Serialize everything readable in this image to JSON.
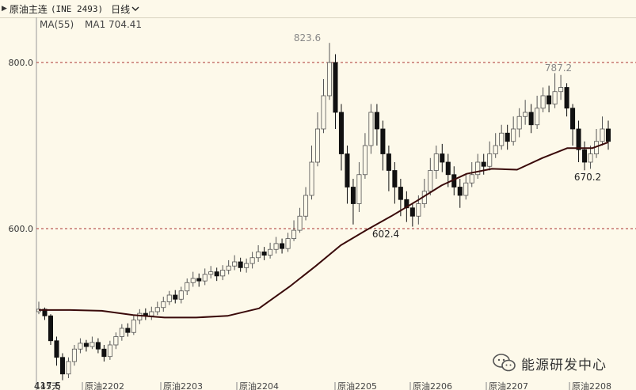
{
  "header": {
    "title": "原油主连",
    "code": "(INE 2493)",
    "period": "日线"
  },
  "indicator": {
    "ma_label": "MA(55)",
    "ma_value": "MA1 704.41"
  },
  "watermark": {
    "text": "能源研发中心",
    "icon": "wechat-icon"
  },
  "colors": {
    "background": "#fdf9ea",
    "candle_up_edge": "#555555",
    "candle_down_fill": "#111111",
    "ma_line": "#3a0a0a",
    "grid": "#a33"
  },
  "chart_data": {
    "type": "candlestick",
    "ylim": [
      450,
      850
    ],
    "y_ticks": [
      "800.0",
      "600.0"
    ],
    "grid_levels": [
      800,
      600
    ],
    "x_labels": [
      "145天",
      "原油2202",
      "原油2203",
      "原油2204",
      "原油2205",
      "原油2206",
      "原油2207",
      "原油2208"
    ],
    "annotations": [
      {
        "label": "823.6",
        "value": 823.6
      },
      {
        "label": "787.2",
        "value": 787.2
      },
      {
        "label": "602.4",
        "value": 602.4
      },
      {
        "label": "670.2",
        "value": 670.2
      },
      {
        "label": "417.5",
        "value": 417.5
      }
    ],
    "ma_series": [
      {
        "i": 0,
        "v": 502
      },
      {
        "i": 10,
        "v": 502
      },
      {
        "i": 20,
        "v": 501
      },
      {
        "i": 30,
        "v": 496
      },
      {
        "i": 40,
        "v": 493
      },
      {
        "i": 50,
        "v": 493
      },
      {
        "i": 60,
        "v": 495
      },
      {
        "i": 70,
        "v": 504
      },
      {
        "i": 80,
        "v": 531
      },
      {
        "i": 88,
        "v": 555
      },
      {
        "i": 96,
        "v": 580
      },
      {
        "i": 104,
        "v": 598
      },
      {
        "i": 112,
        "v": 615
      },
      {
        "i": 120,
        "v": 633
      },
      {
        "i": 128,
        "v": 652
      },
      {
        "i": 136,
        "v": 666
      },
      {
        "i": 144,
        "v": 672
      },
      {
        "i": 152,
        "v": 671
      },
      {
        "i": 160,
        "v": 685
      },
      {
        "i": 168,
        "v": 697
      },
      {
        "i": 176,
        "v": 697
      },
      {
        "i": 181,
        "v": 704
      }
    ],
    "candles": [
      [
        500,
        503,
        512,
        497
      ],
      [
        503,
        495,
        505,
        490
      ],
      [
        495,
        465,
        497,
        460
      ],
      [
        465,
        445,
        470,
        435
      ],
      [
        445,
        425,
        450,
        417.5
      ],
      [
        425,
        440,
        445,
        420
      ],
      [
        440,
        455,
        460,
        435
      ],
      [
        455,
        462,
        468,
        450
      ],
      [
        462,
        458,
        466,
        452
      ],
      [
        458,
        463,
        470,
        455
      ],
      [
        463,
        455,
        468,
        450
      ],
      [
        455,
        446,
        460,
        440
      ],
      [
        446,
        460,
        465,
        442
      ],
      [
        460,
        470,
        475,
        455
      ],
      [
        470,
        480,
        485,
        465
      ],
      [
        480,
        475,
        486,
        470
      ],
      [
        475,
        490,
        495,
        472
      ],
      [
        490,
        498,
        503,
        485
      ],
      [
        498,
        495,
        504,
        490
      ],
      [
        495,
        500,
        506,
        490
      ],
      [
        500,
        505,
        512,
        496
      ],
      [
        505,
        512,
        518,
        500
      ],
      [
        512,
        520,
        525,
        508
      ],
      [
        520,
        515,
        526,
        510
      ],
      [
        515,
        525,
        530,
        510
      ],
      [
        525,
        535,
        540,
        520
      ],
      [
        535,
        540,
        548,
        530
      ],
      [
        540,
        537,
        546,
        530
      ],
      [
        537,
        545,
        552,
        532
      ],
      [
        545,
        548,
        555,
        540
      ],
      [
        548,
        543,
        553,
        537
      ],
      [
        543,
        550,
        556,
        538
      ],
      [
        550,
        555,
        562,
        545
      ],
      [
        555,
        560,
        568,
        550
      ],
      [
        560,
        553,
        565,
        548
      ],
      [
        553,
        558,
        564,
        547
      ],
      [
        558,
        565,
        572,
        552
      ],
      [
        565,
        572,
        580,
        560
      ],
      [
        572,
        568,
        578,
        562
      ],
      [
        568,
        575,
        583,
        564
      ],
      [
        575,
        582,
        590,
        570
      ],
      [
        582,
        576,
        588,
        570
      ],
      [
        576,
        588,
        595,
        572
      ],
      [
        588,
        598,
        610,
        585
      ],
      [
        598,
        615,
        625,
        595
      ],
      [
        615,
        640,
        650,
        610
      ],
      [
        640,
        680,
        700,
        635
      ],
      [
        680,
        720,
        740,
        675
      ],
      [
        720,
        760,
        780,
        715
      ],
      [
        760,
        800,
        823.6,
        755
      ],
      [
        800,
        740,
        810,
        720
      ],
      [
        740,
        690,
        750,
        670
      ],
      [
        690,
        650,
        700,
        630
      ],
      [
        650,
        630,
        660,
        605
      ],
      [
        630,
        665,
        680,
        620
      ],
      [
        665,
        700,
        715,
        660
      ],
      [
        700,
        740,
        750,
        690
      ],
      [
        740,
        720,
        750,
        700
      ],
      [
        720,
        690,
        730,
        670
      ],
      [
        690,
        670,
        700,
        645
      ],
      [
        670,
        650,
        680,
        630
      ],
      [
        650,
        635,
        660,
        615
      ],
      [
        635,
        625,
        645,
        608
      ],
      [
        625,
        615,
        630,
        602.4
      ],
      [
        615,
        630,
        640,
        605
      ],
      [
        630,
        645,
        660,
        625
      ],
      [
        645,
        670,
        685,
        640
      ],
      [
        670,
        690,
        700,
        660
      ],
      [
        690,
        680,
        702,
        668
      ],
      [
        680,
        665,
        690,
        650
      ],
      [
        665,
        650,
        675,
        640
      ],
      [
        650,
        640,
        660,
        625
      ],
      [
        640,
        655,
        665,
        635
      ],
      [
        655,
        665,
        680,
        650
      ],
      [
        665,
        680,
        690,
        660
      ],
      [
        680,
        675,
        690,
        665
      ],
      [
        675,
        690,
        705,
        670
      ],
      [
        690,
        700,
        715,
        685
      ],
      [
        700,
        715,
        725,
        695
      ],
      [
        715,
        705,
        725,
        695
      ],
      [
        705,
        720,
        735,
        700
      ],
      [
        720,
        735,
        745,
        710
      ],
      [
        735,
        740,
        755,
        725
      ],
      [
        740,
        725,
        750,
        715
      ],
      [
        725,
        745,
        760,
        720
      ],
      [
        745,
        760,
        770,
        740
      ],
      [
        760,
        750,
        772,
        740
      ],
      [
        750,
        765,
        787.2,
        745
      ],
      [
        765,
        770,
        785,
        755
      ],
      [
        770,
        745,
        775,
        735
      ],
      [
        745,
        720,
        750,
        700
      ],
      [
        720,
        695,
        730,
        680
      ],
      [
        695,
        680,
        705,
        670.2
      ],
      [
        680,
        690,
        700,
        672
      ],
      [
        690,
        705,
        720,
        685
      ],
      [
        705,
        720,
        735,
        700
      ],
      [
        720,
        705,
        730,
        695
      ]
    ]
  }
}
